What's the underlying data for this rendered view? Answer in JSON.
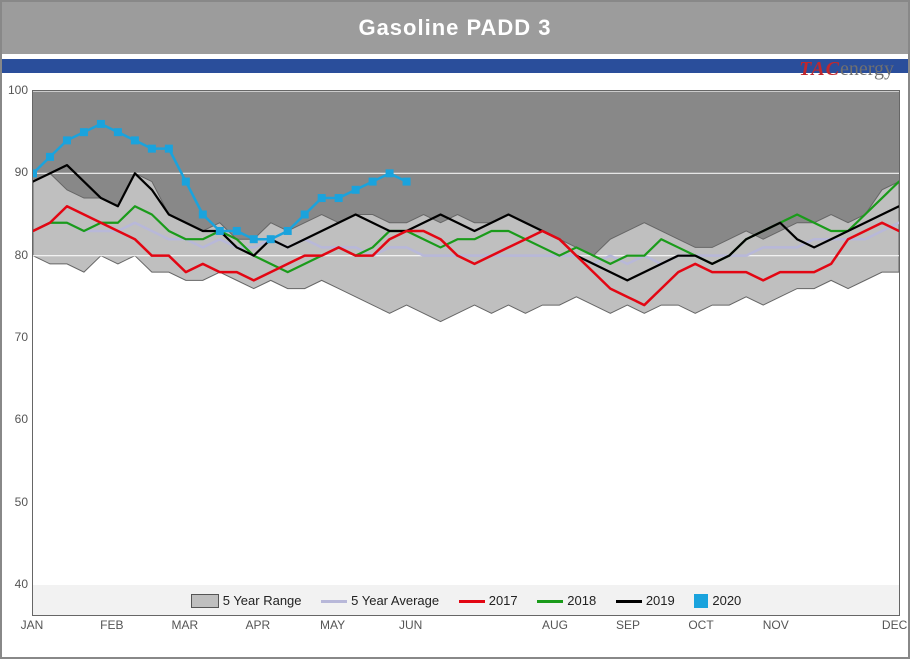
{
  "title": "Gasoline PADD 3",
  "logo": {
    "tac": "TAC",
    "rest": "energy"
  },
  "chart": {
    "type": "line-with-band",
    "ylim": [
      40,
      100
    ],
    "yticks": [
      40,
      50,
      60,
      70,
      80,
      90,
      100
    ],
    "xticks": [
      "JAN",
      "FEB",
      "MAR",
      "APR",
      "MAY",
      "JUN",
      "AUG",
      "SEP",
      "OCT",
      "NOV",
      "DEC"
    ],
    "xtick_pos": [
      0,
      4.7,
      9.0,
      13.3,
      17.7,
      22.3,
      30.8,
      35.1,
      39.4,
      43.8,
      50.8
    ],
    "n_points": 52,
    "band_top": [
      89,
      90,
      88,
      87,
      87,
      86,
      90,
      89,
      85,
      84,
      83,
      84,
      82,
      82,
      84,
      83,
      84,
      85,
      84,
      85,
      85,
      84,
      84,
      85,
      84,
      85,
      84,
      84,
      85,
      84,
      83,
      82,
      81,
      80,
      82,
      83,
      84,
      83,
      82,
      81,
      81,
      82,
      83,
      82,
      83,
      84,
      84,
      85,
      84,
      85,
      88,
      89
    ],
    "band_bottom": [
      80,
      79,
      79,
      78,
      80,
      79,
      80,
      78,
      78,
      77,
      77,
      78,
      77,
      76,
      77,
      76,
      76,
      77,
      76,
      75,
      74,
      73,
      74,
      73,
      72,
      73,
      74,
      73,
      74,
      73,
      74,
      74,
      75,
      74,
      73,
      74,
      73,
      74,
      74,
      73,
      74,
      74,
      75,
      74,
      75,
      76,
      76,
      77,
      76,
      77,
      78,
      78
    ],
    "series": {
      "avg": {
        "label": "5 Year Average",
        "color": "#b8b8d9",
        "width": 2.5,
        "data": [
          83,
          84,
          84,
          83,
          83,
          83,
          84,
          83,
          82,
          82,
          81,
          82,
          81,
          81,
          82,
          81,
          82,
          81,
          81,
          81,
          80,
          81,
          81,
          80,
          80,
          80,
          80,
          80,
          80,
          80,
          80,
          80,
          80,
          79,
          80,
          79,
          80,
          79,
          80,
          80,
          80,
          80,
          80,
          81,
          81,
          81,
          82,
          82,
          82,
          82,
          83,
          84
        ]
      },
      "y2017": {
        "label": "2017",
        "color": "#e30613",
        "width": 2.5,
        "data": [
          83,
          84,
          86,
          85,
          84,
          83,
          82,
          80,
          80,
          78,
          79,
          78,
          78,
          77,
          78,
          79,
          80,
          80,
          81,
          80,
          80,
          82,
          83,
          83,
          82,
          80,
          79,
          80,
          81,
          82,
          83,
          82,
          80,
          78,
          76,
          75,
          74,
          76,
          78,
          79,
          78,
          78,
          78,
          77,
          78,
          78,
          78,
          79,
          82,
          83,
          84,
          83
        ]
      },
      "y2018": {
        "label": "2018",
        "color": "#1a9b1a",
        "width": 2.2,
        "data": [
          83,
          84,
          84,
          83,
          84,
          84,
          86,
          85,
          83,
          82,
          82,
          83,
          82,
          80,
          79,
          78,
          79,
          80,
          81,
          80,
          81,
          83,
          83,
          82,
          81,
          82,
          82,
          83,
          83,
          82,
          81,
          80,
          81,
          80,
          79,
          80,
          80,
          82,
          81,
          80,
          79,
          80,
          82,
          83,
          84,
          85,
          84,
          83,
          83,
          85,
          87,
          89
        ]
      },
      "y2019": {
        "label": "2019",
        "color": "#000000",
        "width": 2.2,
        "data": [
          89,
          90,
          91,
          89,
          87,
          86,
          90,
          88,
          85,
          84,
          83,
          83,
          81,
          80,
          82,
          81,
          82,
          83,
          84,
          85,
          84,
          83,
          83,
          84,
          85,
          84,
          83,
          84,
          85,
          84,
          83,
          82,
          80,
          79,
          78,
          77,
          78,
          79,
          80,
          80,
          79,
          80,
          82,
          83,
          84,
          82,
          81,
          82,
          83,
          84,
          85,
          86
        ]
      },
      "y2020": {
        "label": "2020",
        "color": "#1aa3dd",
        "width": 2.5,
        "markers": true,
        "data": [
          90,
          92,
          94,
          95,
          96,
          95,
          94,
          93,
          93,
          89,
          85,
          83,
          83,
          82,
          82,
          83,
          85,
          87,
          87,
          88,
          89,
          90,
          89
        ]
      }
    },
    "legend_items": [
      {
        "key": "range",
        "label": "5 Year Range"
      },
      {
        "key": "avg",
        "label": "5 Year Average"
      },
      {
        "key": "y2017",
        "label": "2017"
      },
      {
        "key": "y2018",
        "label": "2018"
      },
      {
        "key": "y2019",
        "label": "2019"
      },
      {
        "key": "y2020",
        "label": "2020"
      }
    ],
    "colors": {
      "plot_bg": "#888888",
      "band_fill": "#bfbfbf",
      "band_stroke": "#666666",
      "white_fill": "#ffffff",
      "grid": "#ffffff"
    }
  }
}
